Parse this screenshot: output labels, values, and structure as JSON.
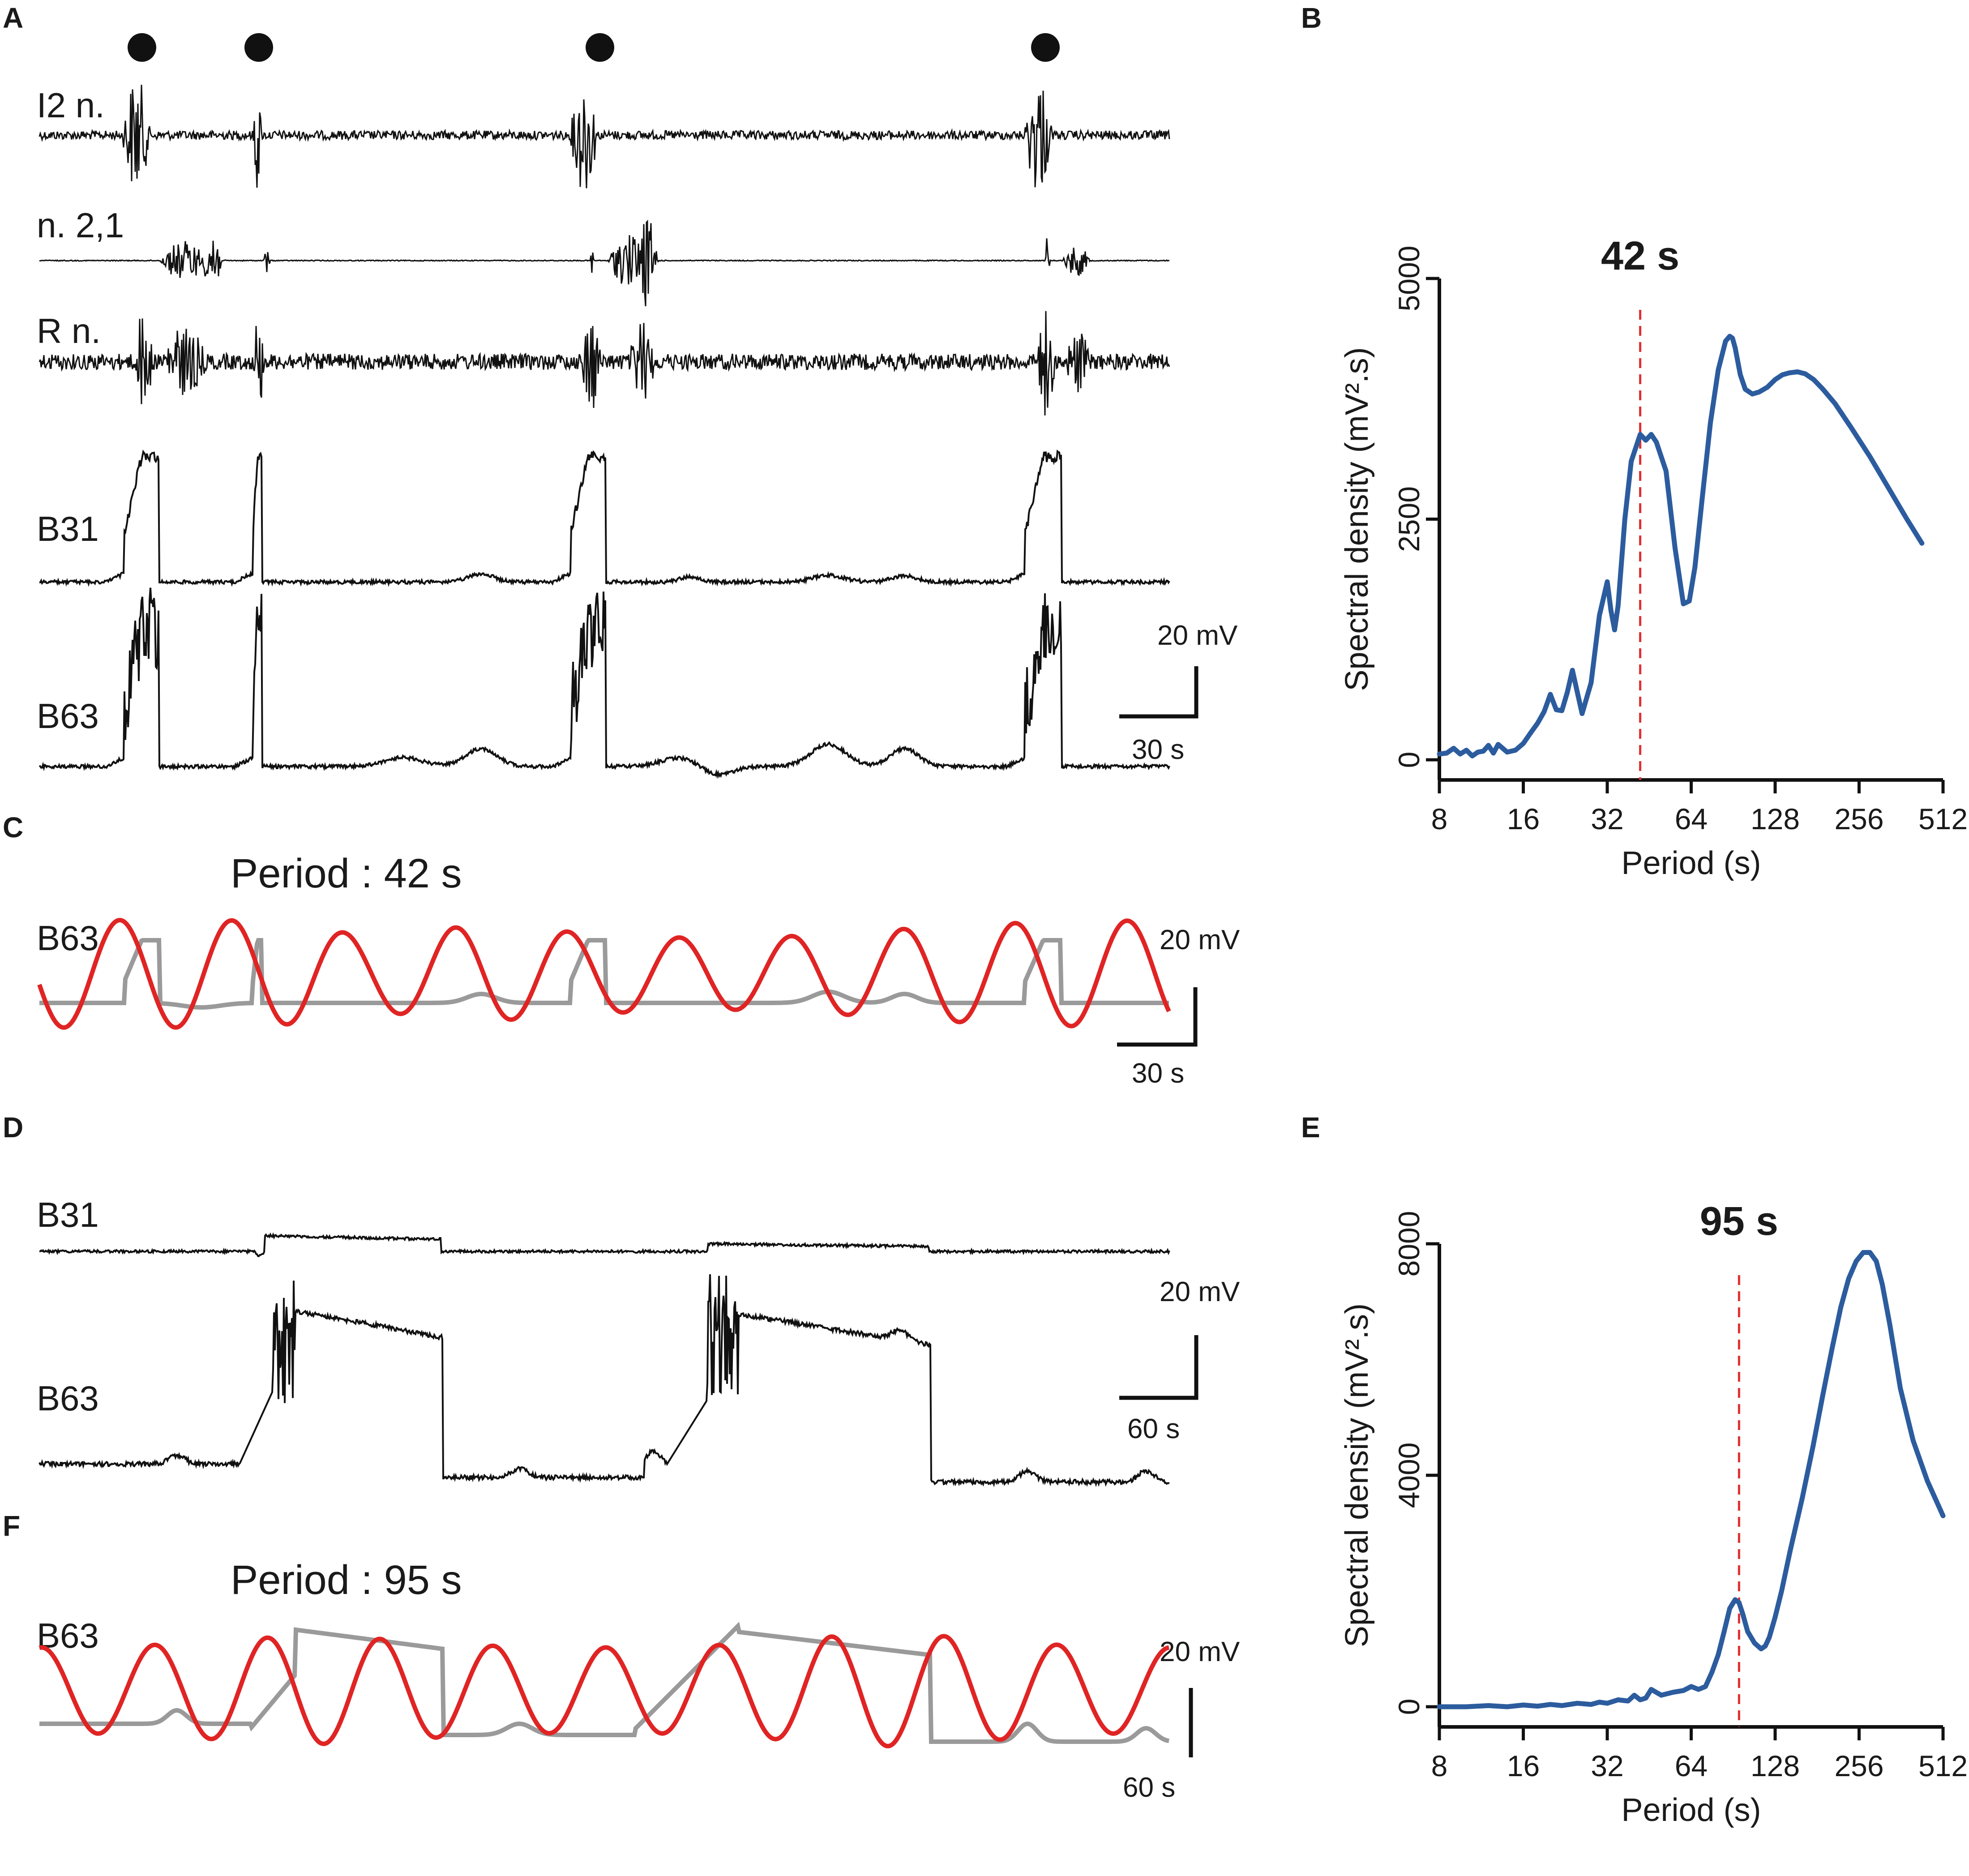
{
  "panels": {
    "A": {
      "label": "A",
      "traces": [
        "I2 n.",
        "n. 2,1",
        "R n.",
        "B31",
        "B63"
      ],
      "scale": {
        "voltage": "20 mV",
        "time": "30 s"
      }
    },
    "C": {
      "label": "C",
      "title": "Period : 42 s",
      "trace": "B63",
      "scale": {
        "voltage": "20 mV",
        "time": "30 s"
      }
    },
    "D": {
      "label": "D",
      "traces": [
        "B31",
        "B63"
      ],
      "scale": {
        "voltage": "20 mV",
        "time": "60 s"
      }
    },
    "F": {
      "label": "F",
      "title": "Period : 95 s",
      "trace": "B63",
      "scale": {
        "voltage": "20 mV",
        "time": "60 s"
      }
    },
    "B": {
      "label": "B"
    },
    "E": {
      "label": "E"
    }
  },
  "chart_data": [
    {
      "id": "B",
      "type": "line",
      "title": "",
      "xlabel": "Period (s)",
      "ylabel": "Spectral density (mV².s)",
      "xscale": "log2",
      "xlim": [
        8,
        512
      ],
      "ylim": [
        0,
        5000
      ],
      "xticks": [
        8,
        16,
        32,
        64,
        128,
        256,
        512
      ],
      "xtick_labels": [
        "8",
        "16",
        "32",
        "64",
        "128",
        "256",
        "512"
      ],
      "yticks": [
        0,
        2500,
        5000
      ],
      "ytick_labels": [
        "0",
        "2500",
        "5000"
      ],
      "peak": {
        "x": 42,
        "label": "42 s"
      },
      "line_color": "#2c5c9e",
      "marker_color": "#e03030",
      "series": [
        {
          "name": "spectral density",
          "x": [
            8,
            8.5,
            9,
            9.5,
            10,
            10.5,
            11,
            11.5,
            12,
            12.5,
            13,
            14,
            15,
            16,
            17,
            18,
            19,
            20,
            21,
            22,
            23,
            24,
            25,
            26,
            28,
            30,
            32,
            33,
            34,
            35,
            37,
            39,
            42,
            44,
            46,
            48,
            52,
            56,
            60,
            63,
            66,
            70,
            75,
            80,
            85,
            88,
            90,
            92,
            96,
            100,
            106,
            112,
            120,
            128,
            136,
            144,
            154,
            164,
            176,
            190,
            210,
            240,
            280,
            330,
            380,
            430
          ],
          "y": [
            60,
            70,
            120,
            60,
            100,
            40,
            80,
            90,
            150,
            70,
            160,
            80,
            100,
            170,
            280,
            380,
            500,
            680,
            520,
            510,
            700,
            930,
            700,
            480,
            800,
            1500,
            1850,
            1550,
            1350,
            1600,
            2500,
            3100,
            3380,
            3320,
            3380,
            3300,
            3000,
            2200,
            1620,
            1650,
            2000,
            2700,
            3500,
            4050,
            4350,
            4400,
            4380,
            4280,
            4000,
            3850,
            3800,
            3820,
            3870,
            3950,
            4000,
            4020,
            4030,
            4010,
            3950,
            3850,
            3700,
            3450,
            3150,
            2800,
            2500,
            2250
          ]
        }
      ]
    },
    {
      "id": "E",
      "type": "line",
      "title": "",
      "xlabel": "Period (s)",
      "ylabel": "Spectral density (mV².s)",
      "xscale": "log2",
      "xlim": [
        8,
        512
      ],
      "ylim": [
        0,
        8000
      ],
      "xticks": [
        8,
        16,
        32,
        64,
        128,
        256,
        512
      ],
      "xtick_labels": [
        "8",
        "16",
        "32",
        "64",
        "128",
        "256",
        "512"
      ],
      "yticks": [
        0,
        4000,
        8000
      ],
      "ytick_labels": [
        "0",
        "4000",
        "8000"
      ],
      "peak": {
        "x": 95,
        "label": "95 s"
      },
      "line_color": "#2c5c9e",
      "marker_color": "#e03030",
      "series": [
        {
          "name": "spectral density",
          "x": [
            8,
            10,
            12,
            14,
            16,
            18,
            20,
            22,
            25,
            28,
            30,
            32,
            35,
            38,
            40,
            42,
            44,
            46,
            50,
            55,
            60,
            64,
            68,
            72,
            76,
            80,
            84,
            88,
            92,
            95,
            98,
            102,
            108,
            114,
            118,
            122,
            128,
            135,
            145,
            160,
            175,
            190,
            205,
            220,
            235,
            250,
            265,
            280,
            295,
            310,
            330,
            360,
            400,
            450,
            512
          ],
          "y": [
            0,
            0,
            20,
            0,
            30,
            10,
            40,
            20,
            60,
            40,
            80,
            60,
            120,
            100,
            200,
            120,
            150,
            300,
            200,
            250,
            280,
            350,
            300,
            350,
            600,
            900,
            1300,
            1700,
            1850,
            1800,
            1600,
            1300,
            1100,
            1000,
            1050,
            1200,
            1550,
            2000,
            2700,
            3600,
            4500,
            5400,
            6200,
            6900,
            7400,
            7700,
            7850,
            7850,
            7700,
            7300,
            6600,
            5500,
            4600,
            3900,
            3300
          ]
        }
      ]
    }
  ]
}
